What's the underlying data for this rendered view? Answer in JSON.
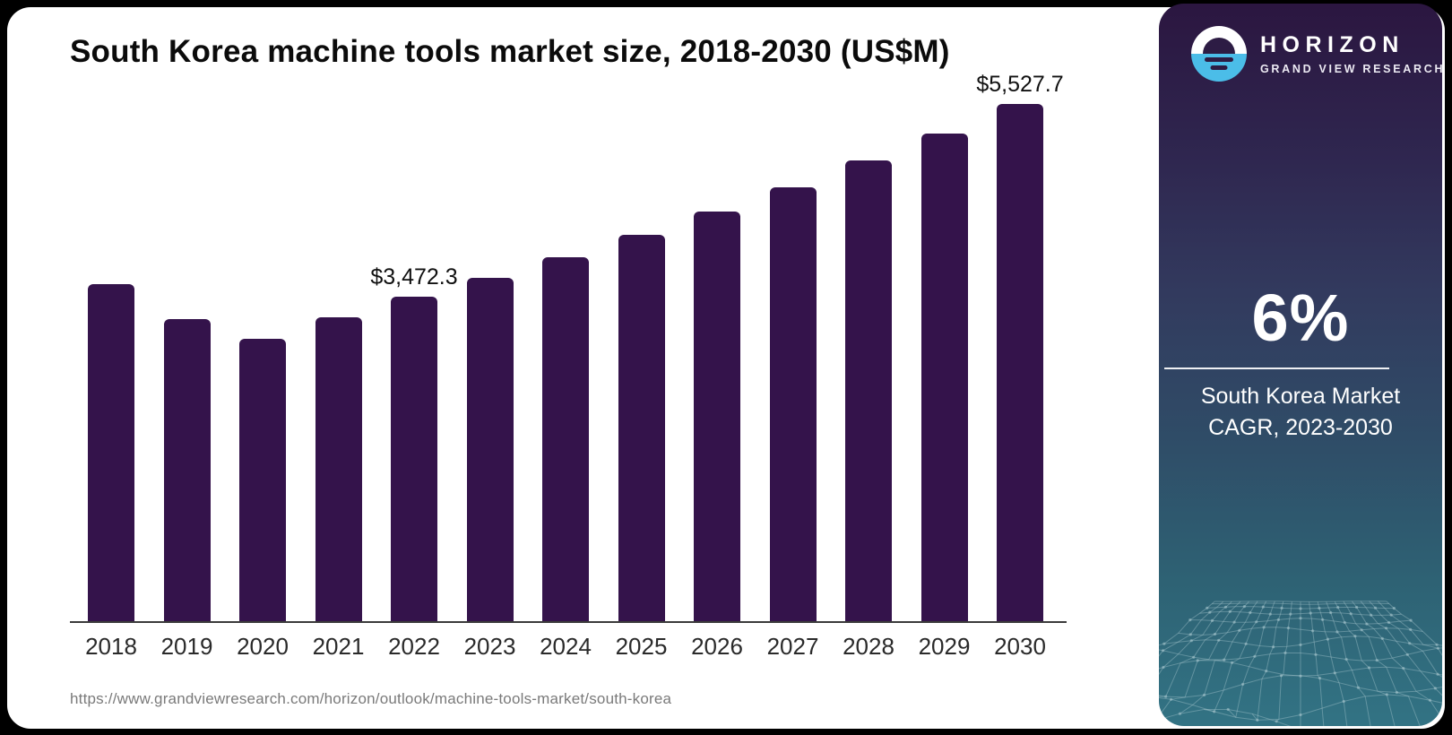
{
  "page": {
    "background": "#000000",
    "card_background": "#ffffff"
  },
  "chart": {
    "title": "South Korea machine tools market size, 2018-2030 (US$M)",
    "source_url": "https://www.grandviewresearch.com/horizon/outlook/machine-tools-market/south-korea"
  },
  "chart_data": {
    "type": "bar",
    "title": "South Korea machine tools market size, 2018-2030 (US$M)",
    "xlabel": "",
    "ylabel": "",
    "categories": [
      "2018",
      "2019",
      "2020",
      "2021",
      "2022",
      "2023",
      "2024",
      "2025",
      "2026",
      "2027",
      "2028",
      "2029",
      "2030"
    ],
    "values": [
      3610,
      3230,
      3020,
      3250,
      3472.3,
      3676,
      3897,
      4131,
      4379,
      4642,
      4921,
      5216,
      5527.7
    ],
    "data_labels": [
      "",
      "",
      "",
      "",
      "$3,472.3",
      "",
      "",
      "",
      "",
      "",
      "",
      "",
      "$5,527.7"
    ],
    "ylim": [
      0,
      5800
    ],
    "grid": false,
    "legend": "none",
    "bar_color": "#34134b",
    "axis_color": "#3b3b3b"
  },
  "sidebar": {
    "brand": "HORIZON",
    "brand_subtitle": "GRAND VIEW RESEARCH",
    "stat_value": "6%",
    "stat_label_line1": "South Korea Market",
    "stat_label_line2": "CAGR, 2023-2030",
    "colors": {
      "logo_blue": "#4bbde8",
      "logo_dark": "#2d1c44",
      "gradient_top": "#2b1640",
      "gradient_mid": "#323a5e",
      "gradient_bottom": "#327384",
      "mesh_line": "#a7c6cd"
    }
  }
}
